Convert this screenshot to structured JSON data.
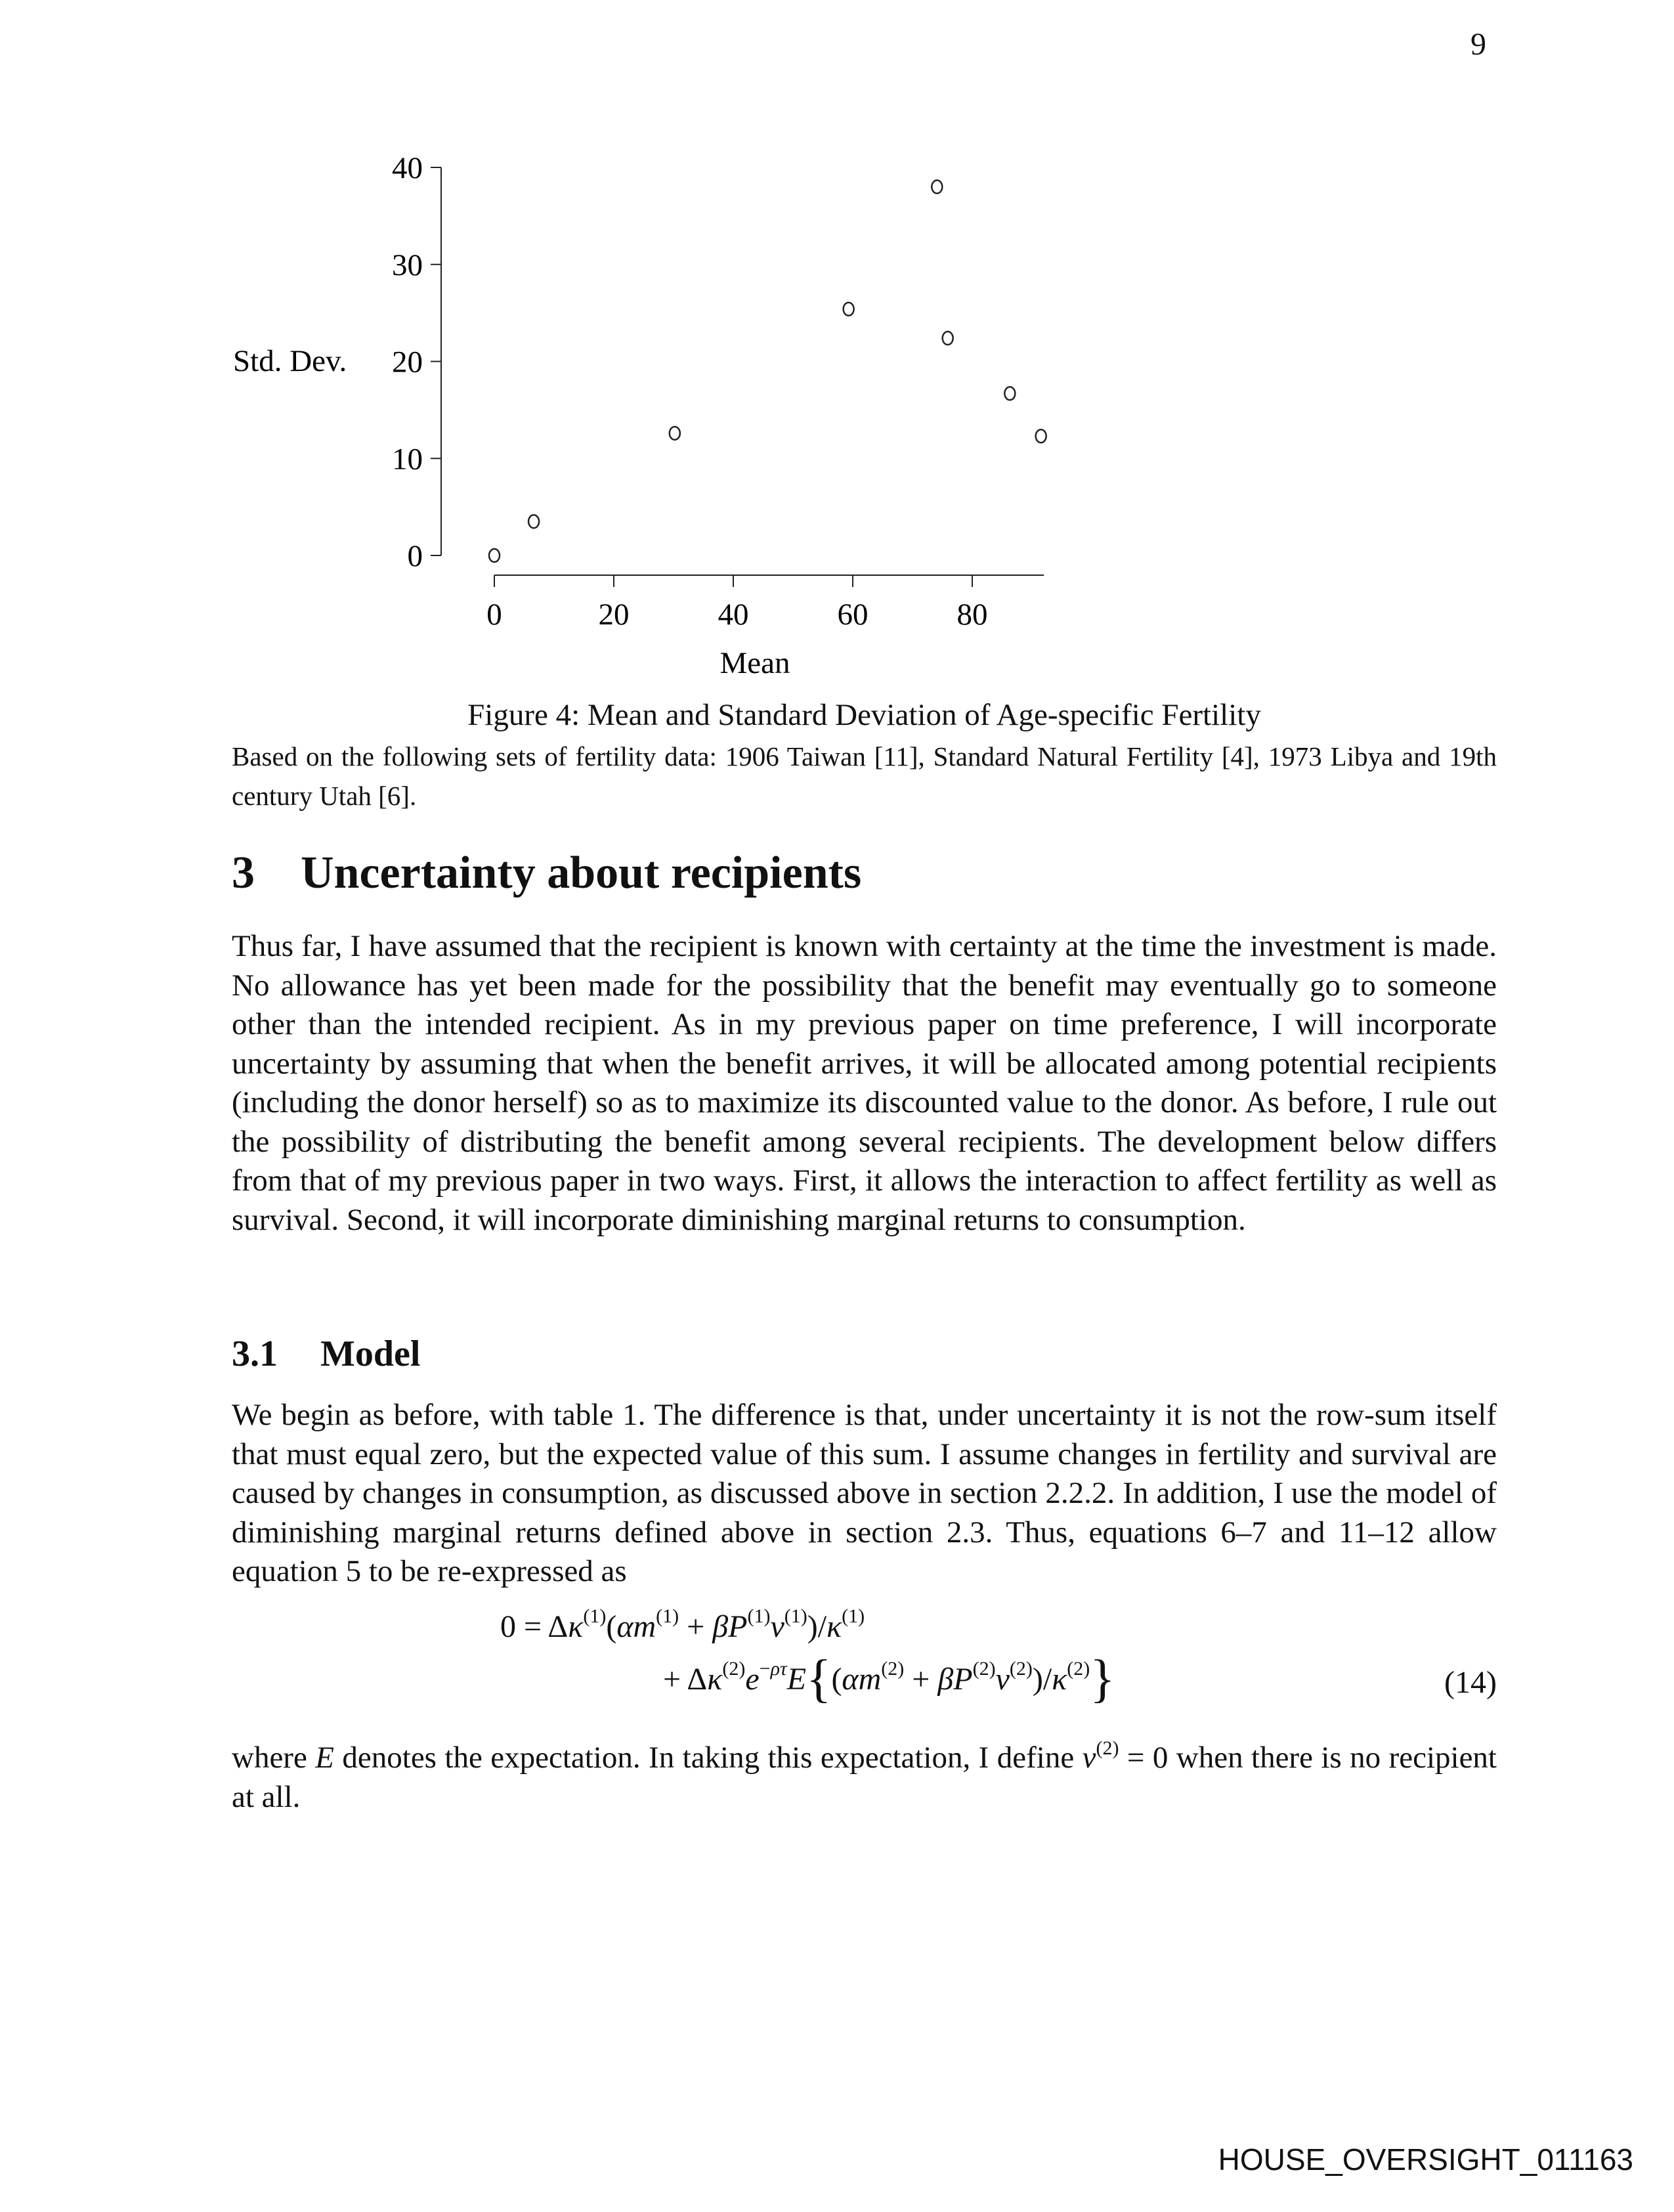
{
  "page_number": "9",
  "figure": {
    "caption": "Figure 4: Mean and Standard Deviation of Age-specific Fertility",
    "note": "Based on the following sets of fertility data: 1906 Taiwan [11], Standard Natural Fertility [4], 1973 Libya and 19th century Utah [6]."
  },
  "chart_data": {
    "type": "scatter",
    "title": "",
    "xlabel": "Mean",
    "ylabel": "Std. Dev.",
    "xlim": [
      0,
      92
    ],
    "ylim": [
      0,
      40
    ],
    "xticks": [
      "0",
      "20",
      "40",
      "60",
      "80"
    ],
    "yticks": [
      "0",
      "10",
      "20",
      "30",
      "40"
    ],
    "grid": false,
    "marker": "open-circle",
    "points": [
      {
        "x": 0,
        "y": 0
      },
      {
        "x": 6.6,
        "y": 3.5
      },
      {
        "x": 30.2,
        "y": 12.6
      },
      {
        "x": 59.3,
        "y": 25.4
      },
      {
        "x": 74.1,
        "y": 38.0
      },
      {
        "x": 75.9,
        "y": 22.4
      },
      {
        "x": 86.3,
        "y": 16.7
      },
      {
        "x": 91.5,
        "y": 12.3
      }
    ]
  },
  "section": {
    "number": "3",
    "title": "Uncertainty about recipients"
  },
  "para1": "Thus far, I have assumed that the recipient is known with certainty at the time the investment is made. No allowance has yet been made for the possibility that the benefit may eventually go to someone other than the intended recipient. As in my previous paper on time preference, I will incorporate uncertainty by assuming that when the benefit arrives, it will be allocated among potential recipients (including the donor herself) so as to maximize its discounted value to the donor. As before, I rule out the possibility of distributing the benefit among several recipients. The development below differs from that of my previous paper in two ways. First, it allows the interaction to affect fertility as well as survival. Second, it will incorporate diminishing marginal returns to consumption.",
  "subsection": {
    "number": "3.1",
    "title": "Model"
  },
  "para2": "We begin as before, with table 1. The difference is that, under uncertainty it is not the row-sum itself that must equal zero, but the expected value of this sum. I assume changes in fertility and survival are caused by changes in consumption, as discussed above in section 2.2.2. In addition, I use the model of diminishing marginal returns defined above in section 2.3. Thus, equations 6–7 and 11–12 allow equation 5 to be re-expressed as",
  "equation": {
    "line1": "0 = Δκ(1)(αm(1) + βP(1)v(1))/κ(1)",
    "line2": "+ Δκ(2)e−ρτE{(αm(2) + βP(2)v(2))/κ(2)}",
    "number": "(14)"
  },
  "para3": "where E denotes the expectation. In taking this expectation, I define v(2) = 0 when there is no recipient at all.",
  "footer": "HOUSE_OVERSIGHT_011163"
}
